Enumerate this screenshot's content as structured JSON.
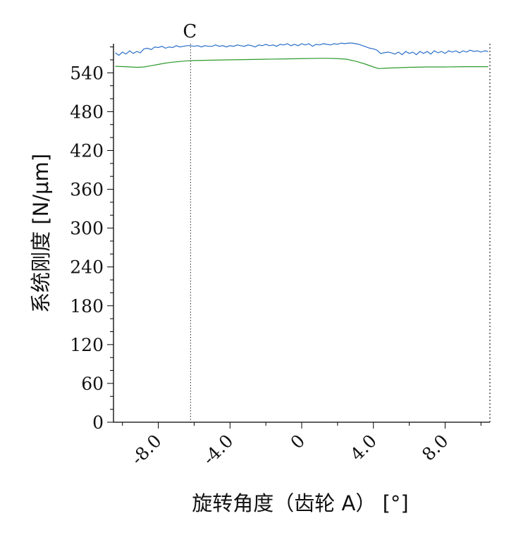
{
  "chart_data": {
    "type": "line",
    "title": "",
    "xlabel": "旋转角度（齿轮 A） [°]",
    "ylabel": "系统刚度 [N/μm]",
    "xlim": [
      -10.5,
      10.5
    ],
    "ylim": [
      0,
      585
    ],
    "x_ticks": [
      -8.0,
      -4.0,
      0,
      4.0,
      8.0
    ],
    "x_tick_labels": [
      "-8.0",
      "-4.0",
      "0",
      "4.0",
      "8.0"
    ],
    "y_ticks": [
      0,
      60,
      120,
      180,
      240,
      300,
      360,
      420,
      480,
      540
    ],
    "y_tick_labels": [
      "0",
      "60",
      "120",
      "180",
      "240",
      "300",
      "360",
      "420",
      "480",
      "540"
    ],
    "grid": false,
    "legend": "none",
    "marker": {
      "label": "C",
      "x": -6.2
    },
    "series": [
      {
        "color": "#2a6fc9",
        "x": [
          -10.4,
          -10.2,
          -10.0,
          -9.8,
          -9.6,
          -9.4,
          -9.2,
          -9.0,
          -8.8,
          -8.6,
          -8.4,
          -8.2,
          -8.0,
          -7.8,
          -7.6,
          -7.4,
          -7.2,
          -7.0,
          -6.8,
          -6.6,
          -6.4,
          -6.2,
          -6.0,
          -5.8,
          -5.6,
          -5.4,
          -5.2,
          -5.0,
          -4.8,
          -4.6,
          -4.4,
          -4.2,
          -4.0,
          -3.8,
          -3.6,
          -3.4,
          -3.2,
          -3.0,
          -2.8,
          -2.6,
          -2.4,
          -2.2,
          -2.0,
          -1.8,
          -1.6,
          -1.4,
          -1.2,
          -1.0,
          -0.8,
          -0.6,
          -0.4,
          -0.2,
          0.0,
          0.2,
          0.4,
          0.6,
          0.8,
          1.0,
          1.2,
          1.4,
          1.6,
          1.8,
          2.0,
          2.2,
          2.4,
          2.6,
          2.8,
          3.0,
          3.2,
          3.4,
          3.6,
          3.8,
          4.0,
          4.2,
          4.4,
          4.6,
          4.8,
          5.0,
          5.2,
          5.4,
          5.6,
          5.8,
          6.0,
          6.2,
          6.4,
          6.6,
          6.8,
          7.0,
          7.2,
          7.4,
          7.6,
          7.8,
          8.0,
          8.2,
          8.4,
          8.6,
          8.8,
          9.0,
          9.2,
          9.4,
          9.6,
          9.8,
          10.0,
          10.2,
          10.4
        ],
        "y": [
          571,
          567,
          572,
          569,
          574,
          570,
          573,
          571,
          577,
          578,
          576,
          580,
          579,
          581,
          578,
          580,
          579,
          582,
          580,
          581,
          582,
          582,
          581,
          582,
          580,
          582,
          581,
          581,
          583,
          581,
          582,
          580,
          582,
          581,
          583,
          582,
          581,
          583,
          582,
          580,
          583,
          582,
          584,
          582,
          583,
          581,
          584,
          583,
          585,
          582,
          584,
          582,
          585,
          583,
          585,
          581,
          584,
          583,
          585,
          584,
          583,
          585,
          584,
          586,
          585,
          586,
          586,
          585,
          584,
          582,
          580,
          578,
          577,
          575,
          570,
          571,
          572,
          571,
          569,
          572,
          568,
          573,
          570,
          572,
          568,
          573,
          570,
          573,
          569,
          574,
          571,
          573,
          570,
          574,
          572,
          574,
          571,
          574,
          572,
          575,
          573,
          574,
          572,
          574,
          573
        ]
      },
      {
        "color": "#2d9a2d",
        "x": [
          -10.4,
          -9.8,
          -9.2,
          -8.8,
          -8.4,
          -8.0,
          -7.6,
          -7.2,
          -6.8,
          -6.4,
          -6.0,
          -5.0,
          -4.0,
          -3.0,
          -2.0,
          -1.0,
          0.0,
          1.0,
          1.5,
          2.0,
          2.5,
          3.0,
          3.5,
          4.0,
          4.3,
          4.6,
          5.0,
          5.5,
          6.0,
          7.0,
          8.0,
          9.0,
          10.0,
          10.4
        ],
        "y": [
          550,
          549.5,
          548.5,
          549,
          551,
          553,
          555,
          556.5,
          557.5,
          558.5,
          559,
          559.5,
          560,
          560.5,
          561,
          561.5,
          562,
          562.5,
          562.5,
          562,
          561,
          558,
          554,
          549,
          546.5,
          547,
          547.5,
          548,
          548.5,
          549,
          549,
          549.5,
          549.5,
          549.5
        ]
      }
    ]
  }
}
